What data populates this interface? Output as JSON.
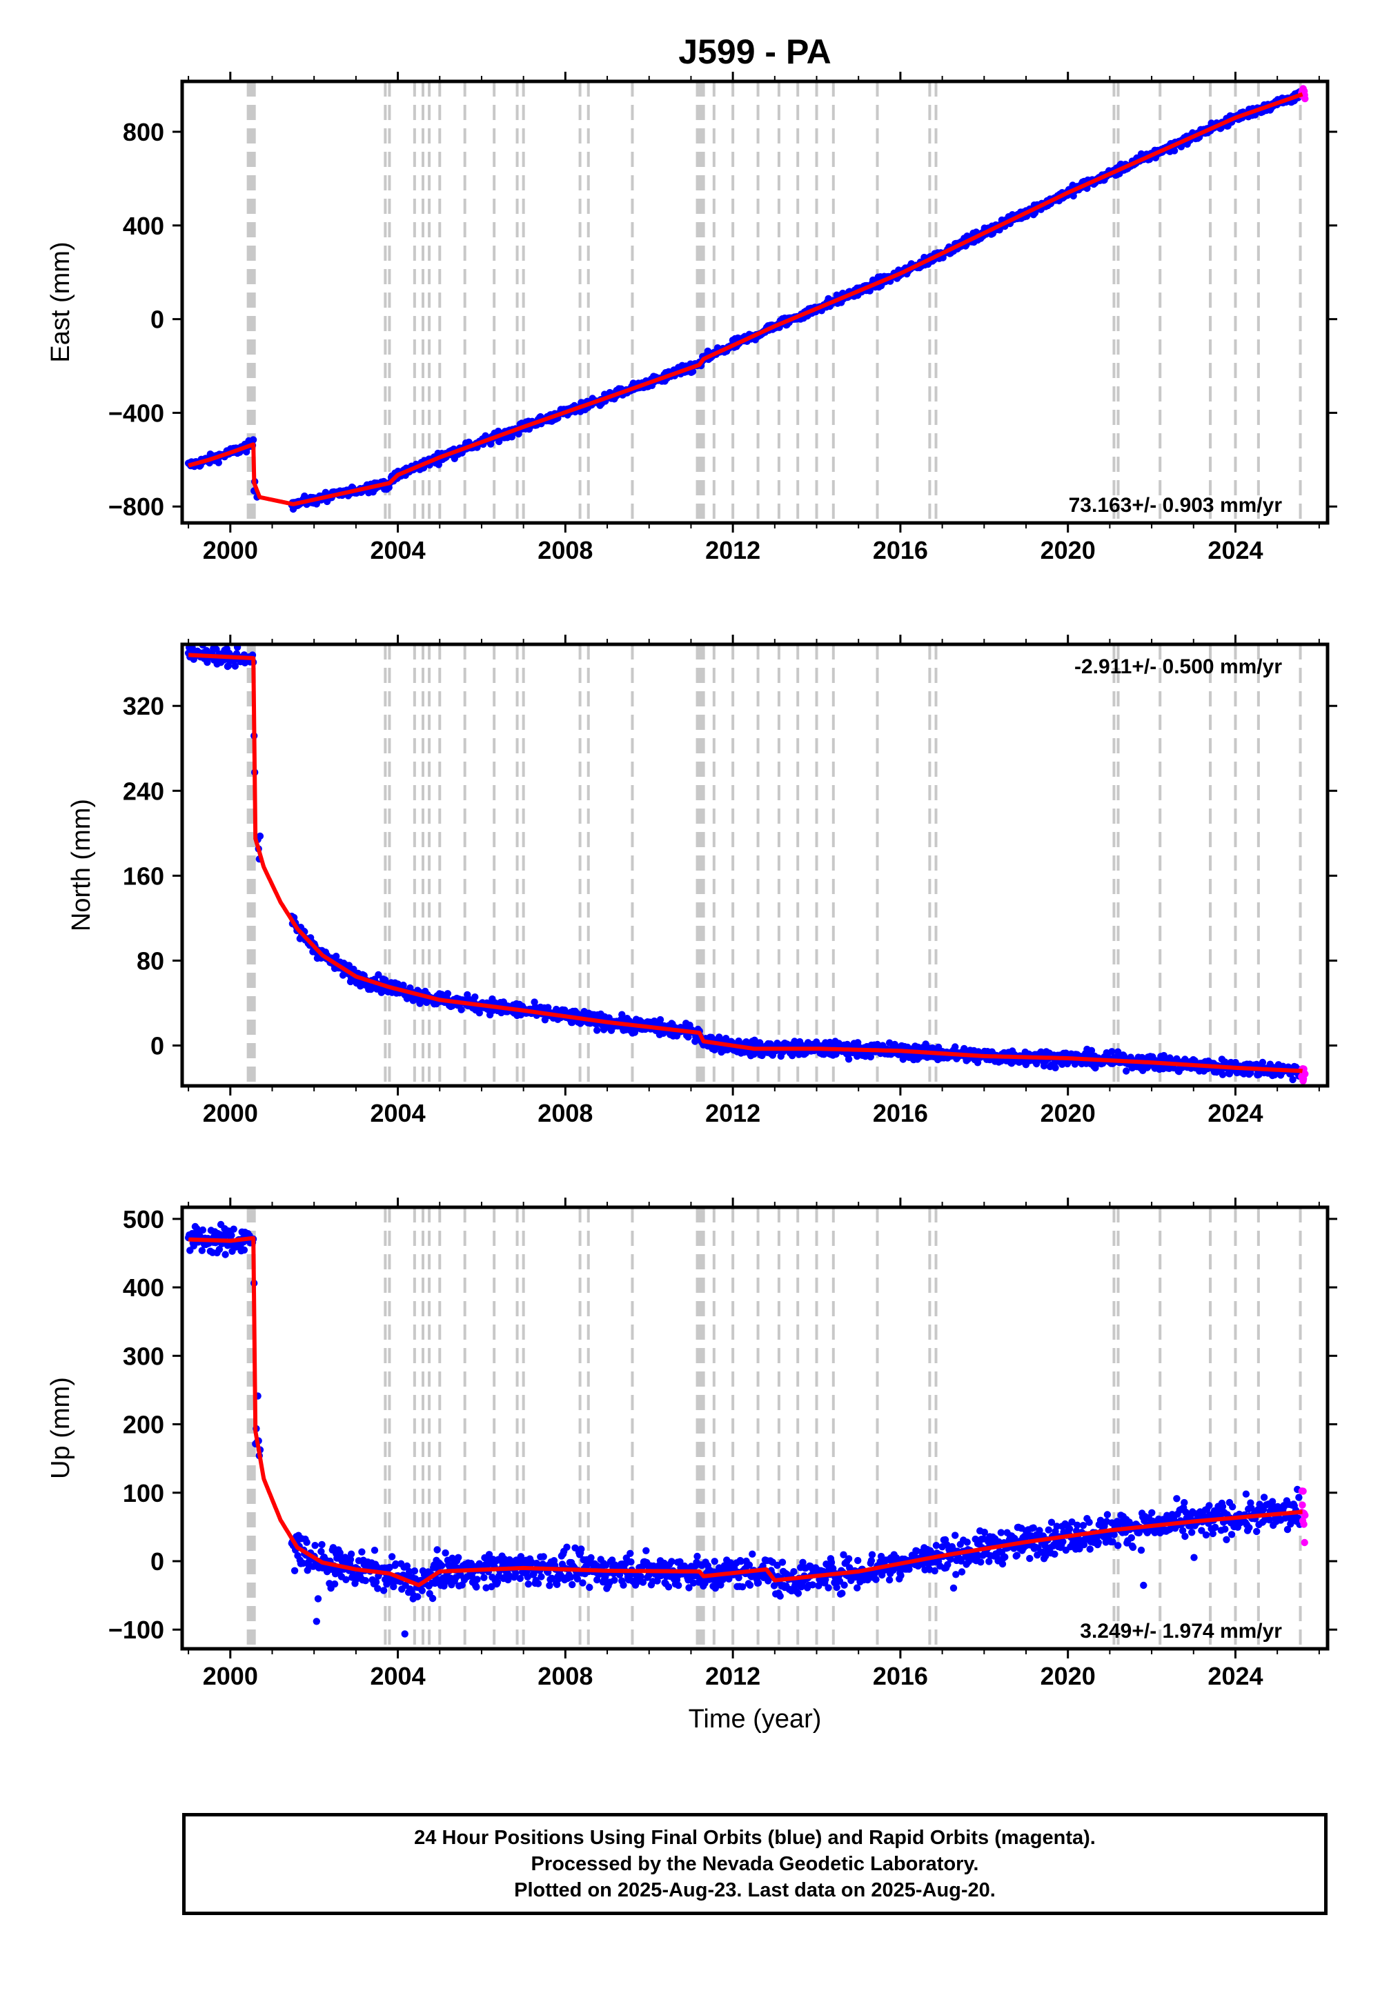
{
  "title": "J599 - PA",
  "chart_data": [
    {
      "type": "scatter",
      "panel": "east",
      "ylabel": "East (mm)",
      "xlabel": "",
      "xlim": [
        1998.85,
        2026.2
      ],
      "ylim": [
        -870,
        1015
      ],
      "xticks": [
        2000,
        2004,
        2008,
        2012,
        2016,
        2020,
        2024
      ],
      "yticks": [
        -800,
        -400,
        0,
        400,
        800
      ],
      "ytick_labels": [
        "−800",
        "−400",
        "0",
        "400",
        "800"
      ],
      "rate_label": "73.163+/- 0.903 mm/yr",
      "rate_position": "bottom-right",
      "model_fit": {
        "name": "model",
        "x": [
          1999.0,
          1999.5,
          2000.0,
          2000.55,
          2000.57,
          2000.7,
          2001.5,
          2003.8,
          2004.0,
          2005.0,
          2007.0,
          2009.0,
          2011.2,
          2011.3,
          2013.0,
          2016.0,
          2020.0,
          2022.0,
          2024.0,
          2025.6
        ],
        "y": [
          -625,
          -600,
          -570,
          -535,
          -700,
          -760,
          -790,
          -700,
          -665,
          -590,
          -460,
          -335,
          -195,
          -170,
          -30,
          195,
          540,
          700,
          860,
          960
        ]
      }
    },
    {
      "type": "scatter",
      "panel": "north",
      "ylabel": "North (mm)",
      "xlabel": "",
      "xlim": [
        1998.85,
        2026.2
      ],
      "ylim": [
        -38,
        378
      ],
      "xticks": [
        2000,
        2004,
        2008,
        2012,
        2016,
        2020,
        2024
      ],
      "yticks": [
        0,
        80,
        160,
        240,
        320
      ],
      "ytick_labels": [
        "0",
        "80",
        "160",
        "240",
        "320"
      ],
      "rate_label": "-2.911+/- 0.500 mm/yr",
      "rate_position": "top-right",
      "model_fit": {
        "name": "model",
        "x": [
          1999.0,
          2000.0,
          2000.55,
          2000.6,
          2000.8,
          2001.2,
          2001.6,
          2002.2,
          2003.0,
          2003.8,
          2005.0,
          2007.0,
          2009.0,
          2011.2,
          2011.3,
          2012.5,
          2014.0,
          2016.0,
          2018.0,
          2020.0,
          2022.0,
          2024.0,
          2025.6
        ],
        "y": [
          368,
          366,
          365,
          195,
          168,
          135,
          110,
          85,
          65,
          55,
          43,
          33,
          22,
          12,
          4,
          -3,
          -3,
          -5,
          -10,
          -12,
          -16,
          -21,
          -24
        ]
      }
    },
    {
      "type": "scatter",
      "panel": "up",
      "ylabel": "Up (mm)",
      "xlabel": "Time (year)",
      "xlim": [
        1998.85,
        2026.2
      ],
      "ylim": [
        -128,
        517
      ],
      "xticks": [
        2000,
        2004,
        2008,
        2012,
        2016,
        2020,
        2024
      ],
      "yticks": [
        -100,
        0,
        100,
        200,
        300,
        400,
        500
      ],
      "ytick_labels": [
        "−100",
        "0",
        "100",
        "200",
        "300",
        "400",
        "500"
      ],
      "rate_label": "3.249+/- 1.974 mm/yr",
      "rate_position": "bottom-right",
      "model_fit": {
        "name": "model",
        "x": [
          1999.0,
          2000.0,
          2000.55,
          2000.6,
          2000.8,
          2001.2,
          2001.6,
          2002.2,
          2003.0,
          2003.8,
          2004.5,
          2005.0,
          2007.0,
          2009.0,
          2011.2,
          2011.3,
          2012.8,
          2013.0,
          2015.0,
          2017.0,
          2019.0,
          2021.0,
          2023.0,
          2025.6
        ],
        "y": [
          470,
          468,
          472,
          190,
          120,
          60,
          20,
          -2,
          -12,
          -18,
          -35,
          -15,
          -10,
          -14,
          -15,
          -22,
          -12,
          -28,
          -15,
          8,
          28,
          45,
          58,
          72
        ]
      }
    }
  ],
  "event_lines": [
    2000.45,
    2000.5,
    2000.55,
    2003.7,
    2003.8,
    2004.4,
    2004.6,
    2004.75,
    2005.0,
    2005.6,
    2006.3,
    2006.85,
    2007.0,
    2008.35,
    2008.55,
    2009.6,
    2011.15,
    2011.22,
    2011.3,
    2011.55,
    2012.0,
    2012.6,
    2013.1,
    2013.55,
    2014.0,
    2014.4,
    2015.45,
    2016.7,
    2016.85,
    2021.1,
    2021.2,
    2022.2,
    2023.4,
    2024.0,
    2024.55,
    2025.55
  ],
  "thick_event_lines": [
    2000.45,
    2000.5,
    2000.55,
    2011.22
  ],
  "caption": [
    "24 Hour Positions Using Final Orbits (blue) and Rapid Orbits (magenta).",
    "Processed by the Nevada Geodetic Laboratory.",
    "Plotted on 2025-Aug-23. Last data on 2025-Aug-20."
  ],
  "colors": {
    "final_orbits": "#0000ff",
    "rapid_orbits": "#ff00ff",
    "model": "#ff0000",
    "event_line": "#c8c8c8",
    "frame": "#000000"
  }
}
